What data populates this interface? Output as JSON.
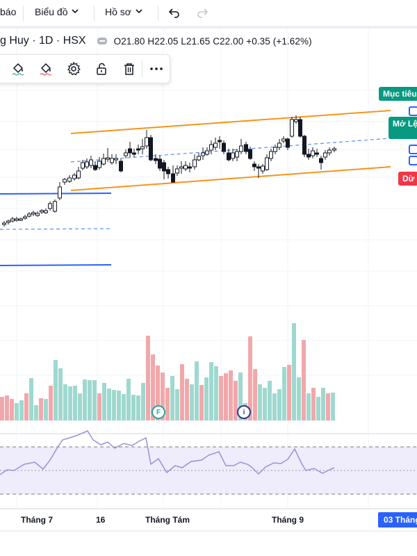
{
  "topbar": {
    "item1_label": "báo",
    "chart_menu_label": "Biểu đồ",
    "profile_menu_label": "Hồ sơ"
  },
  "legend": {
    "symbol": "g Huy · 1D · HSX",
    "open": "O21.80",
    "high": "H22.05",
    "low": "L21.65",
    "close": "C22.00",
    "change": "+0.35 (+1.62%)"
  },
  "tags": {
    "target": "Mục tiêu",
    "entry": "Mở Lệ",
    "stop": "Dừ"
  },
  "x_axis": {
    "labels": [
      "Tháng 7",
      "16",
      "Tháng Tám",
      "Tháng 9"
    ],
    "crosshair_date": "03 Tháng"
  },
  "events": {
    "financial": "F",
    "info": "i"
  },
  "colors": {
    "up": "#26a69a",
    "down": "#ef5350",
    "vol_up": "#9fd8cf",
    "vol_down": "#f2a7aa",
    "channel": "#f7931a",
    "blue_line": "#2962ff",
    "rsi_line": "#9b8fd9",
    "rsi_band": "#efecfb",
    "target_tag": "#089981",
    "stop_tag": "#f23645"
  },
  "icons": [
    "undo-icon",
    "redo-icon",
    "fill-bucket-icon",
    "fill-bucket-icon",
    "settings-gear-icon",
    "lock-icon",
    "trash-icon",
    "more-icon"
  ]
}
